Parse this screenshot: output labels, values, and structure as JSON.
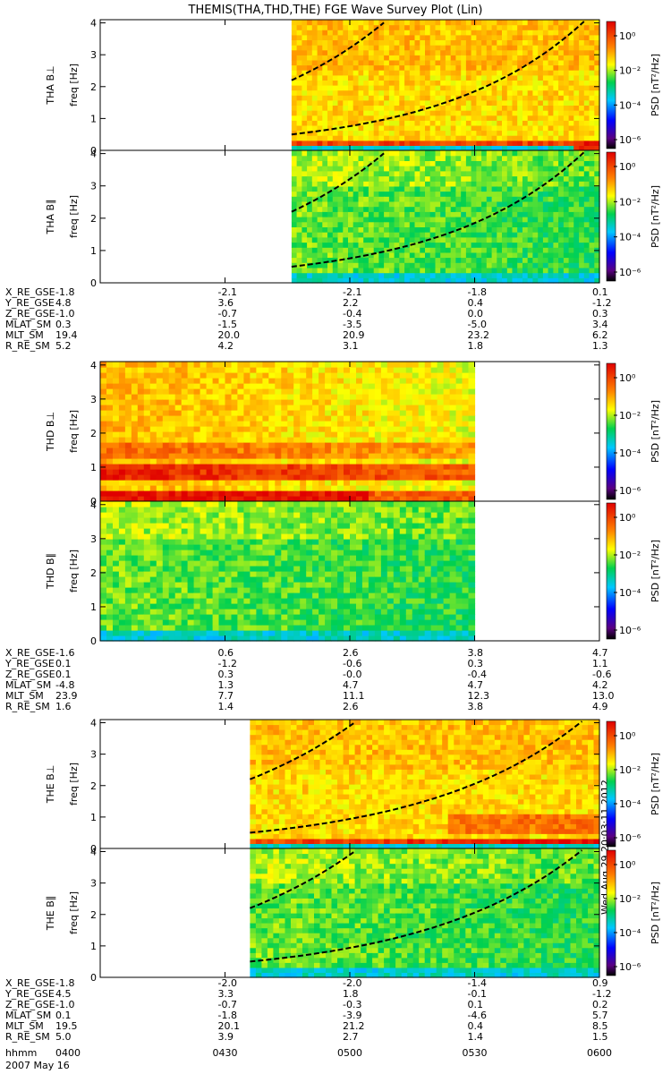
{
  "title": "THEMIS(THA,THD,THE) FGE Wave Survey Plot (Lin)",
  "colorbar_label": "PSD [nT²/Hz]",
  "colorbar_ticks": [
    "10⁰",
    "10⁻²",
    "10⁻⁴",
    "10⁻⁶"
  ],
  "stamp": "Wed Aug 29 20:03:11 2012",
  "time_label": "hhmm",
  "date_label": "2007 May 16",
  "ephem_labels": [
    "X_RE_GSE",
    "Y_RE_GSE",
    "Z_RE_GSE",
    "MLAT_SM",
    "MLT_SM",
    "R_RE_SM"
  ],
  "time_ticks": [
    "0400",
    "0430",
    "0500",
    "0530",
    "0600"
  ],
  "chart_data": [
    {
      "type": "heatmap",
      "probe": "THA",
      "ylabel": "THA B⊥",
      "ylabel2": "freq [Hz]",
      "yticks": [
        "0",
        "1",
        "2",
        "3",
        "4"
      ],
      "ylim": [
        0,
        4.1
      ],
      "x": [
        "0400",
        "0430",
        "0500",
        "0530",
        "0600"
      ],
      "data_start": "0446",
      "data_end": "0600",
      "intense_band_start": "0545"
    },
    {
      "type": "heatmap",
      "probe": "THA",
      "ylabel": "THA B∥",
      "ylabel2": "freq [Hz]",
      "yticks": [
        "0",
        "1",
        "2",
        "3",
        "4"
      ],
      "ylim": [
        0,
        4.1
      ],
      "x": [
        "0400",
        "0430",
        "0500",
        "0530",
        "0600"
      ],
      "data_start": "0446",
      "data_end": "0600"
    },
    {
      "type": "heatmap",
      "probe": "THD",
      "ylabel": "THD B⊥",
      "ylabel2": "freq [Hz]",
      "yticks": [
        "0",
        "1",
        "2",
        "3",
        "4"
      ],
      "ylim": [
        0,
        4.1
      ],
      "x": [
        "0400",
        "0430",
        "0500",
        "0530",
        "0600"
      ],
      "data_start": "0400",
      "data_end": "0530"
    },
    {
      "type": "heatmap",
      "probe": "THD",
      "ylabel": "THD B∥",
      "ylabel2": "freq [Hz]",
      "yticks": [
        "0",
        "1",
        "2",
        "3",
        "4"
      ],
      "ylim": [
        0,
        4.1
      ],
      "x": [
        "0400",
        "0430",
        "0500",
        "0530",
        "0600"
      ],
      "data_start": "0400",
      "data_end": "0530"
    },
    {
      "type": "heatmap",
      "probe": "THE",
      "ylabel": "THE B⊥",
      "ylabel2": "freq [Hz]",
      "yticks": [
        "0",
        "1",
        "2",
        "3",
        "4"
      ],
      "ylim": [
        0,
        4.1
      ],
      "x": [
        "0400",
        "0430",
        "0500",
        "0530",
        "0600"
      ],
      "data_start": "0436",
      "data_end": "0600"
    },
    {
      "type": "heatmap",
      "probe": "THE",
      "ylabel": "THE B∥",
      "ylabel2": "freq [Hz]",
      "yticks": [
        "0",
        "1",
        "2",
        "3",
        "4"
      ],
      "ylim": [
        0,
        4.1
      ],
      "x": [
        "0400",
        "0430",
        "0500",
        "0530",
        "0600"
      ],
      "data_start": "0436",
      "data_end": "0600"
    }
  ],
  "ephemeris": [
    {
      "probe": "THA",
      "rows": [
        [
          "-1.8",
          "-2.1",
          "-2.1",
          "-1.8",
          "0.1"
        ],
        [
          "4.8",
          "3.6",
          "2.2",
          "0.4",
          "-1.2"
        ],
        [
          "-1.0",
          "-0.7",
          "-0.4",
          "0.0",
          "0.3"
        ],
        [
          "0.3",
          "-1.5",
          "-3.5",
          "-5.0",
          "3.4"
        ],
        [
          "19.4",
          "20.0",
          "20.9",
          "23.2",
          "6.2"
        ],
        [
          "5.2",
          "4.2",
          "3.1",
          "1.8",
          "1.3"
        ]
      ]
    },
    {
      "probe": "THD",
      "rows": [
        [
          "-1.6",
          "0.6",
          "2.6",
          "3.8",
          "4.7"
        ],
        [
          "0.1",
          "-1.2",
          "-0.6",
          "0.3",
          "1.1"
        ],
        [
          "0.1",
          "0.3",
          "-0.0",
          "-0.4",
          "-0.6"
        ],
        [
          "-4.8",
          "1.3",
          "4.7",
          "4.7",
          "4.2"
        ],
        [
          "23.9",
          "7.7",
          "11.1",
          "12.3",
          "13.0"
        ],
        [
          "1.6",
          "1.4",
          "2.6",
          "3.8",
          "4.9"
        ]
      ]
    },
    {
      "probe": "THE",
      "rows": [
        [
          "-1.8",
          "-2.0",
          "-2.0",
          "-1.4",
          "0.9"
        ],
        [
          "4.5",
          "3.3",
          "1.8",
          "-0.1",
          "-1.2"
        ],
        [
          "-1.0",
          "-0.7",
          "-0.3",
          "0.1",
          "0.2"
        ],
        [
          "0.1",
          "-1.8",
          "-3.9",
          "-4.6",
          "5.7"
        ],
        [
          "19.5",
          "20.1",
          "21.2",
          "0.4",
          "8.5"
        ],
        [
          "5.0",
          "3.9",
          "2.7",
          "1.4",
          "1.5"
        ]
      ]
    }
  ]
}
